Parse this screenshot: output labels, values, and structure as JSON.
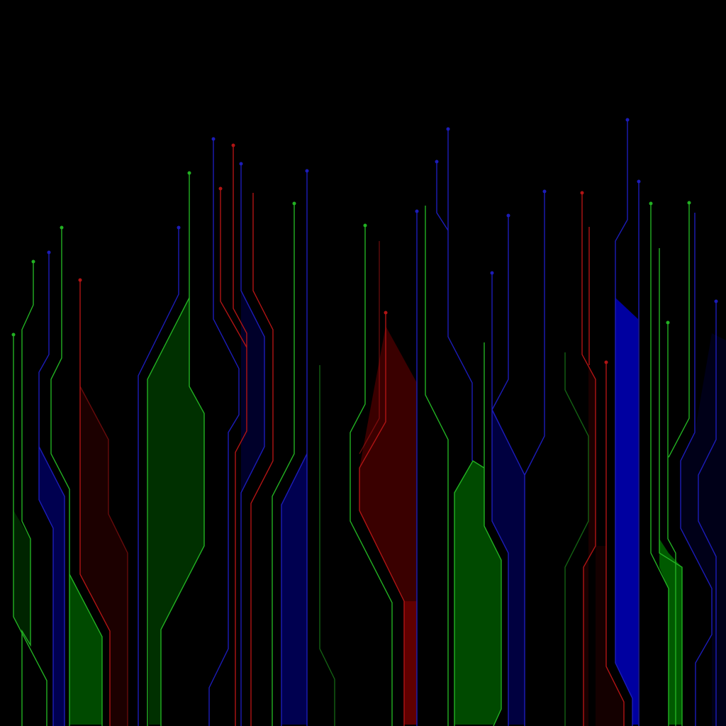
{
  "artwork": {
    "background": "#000000",
    "colors": {
      "green_line": "#22b022",
      "green_fill": "#004a00",
      "blue_line": "#1c1cb8",
      "blue_fill": "#00004a",
      "red_line": "#b01414",
      "red_fill": "#3a0000"
    }
  }
}
